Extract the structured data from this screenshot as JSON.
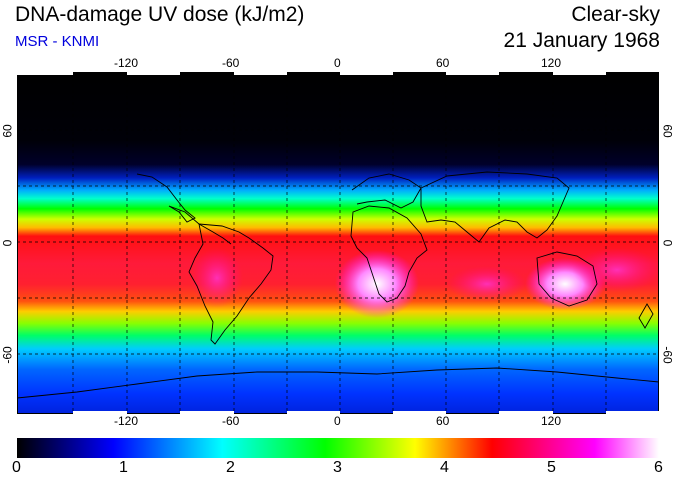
{
  "header": {
    "title": "DNA-damage UV dose (kJ/m2)",
    "subtitle": "MSR - KNMI",
    "condition": "Clear-sky",
    "date": "21 January 1968"
  },
  "axes": {
    "lon_ticks": [
      "-120",
      "-60",
      "0",
      "60",
      "120"
    ],
    "lat_ticks": [
      "60",
      "0",
      "-60"
    ]
  },
  "colorbar": {
    "labels": [
      "0",
      "1",
      "2",
      "3",
      "4",
      "5",
      "6"
    ],
    "colors": [
      "#000000",
      "#0000ff",
      "#00ffff",
      "#00ff00",
      "#ffff00",
      "#ff0000",
      "#ff00ff",
      "#ffffff"
    ]
  }
}
